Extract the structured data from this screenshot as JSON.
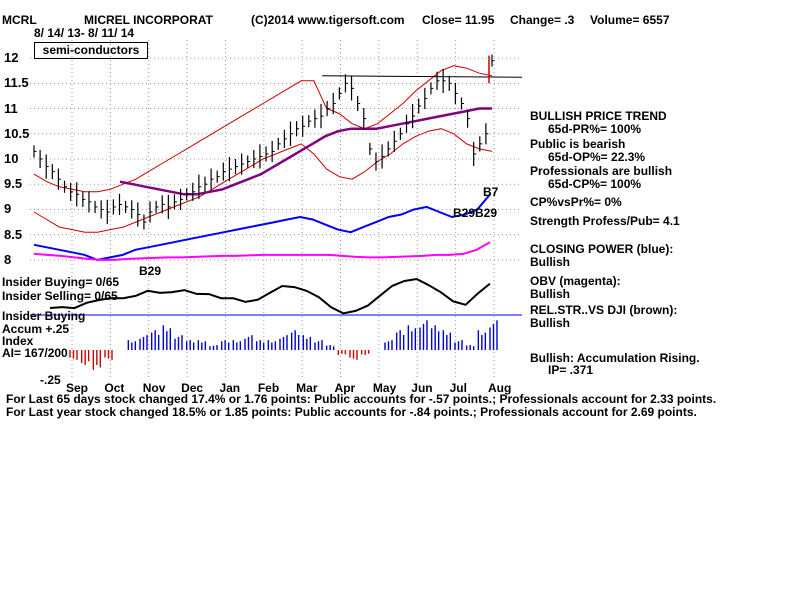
{
  "header": {
    "symbol": "MCRL",
    "company": "MICREL INCORPORAT",
    "copyright": "(C)2014 www.tigersoft.com",
    "close": "Close=  11.95",
    "change": "Change= .3",
    "volume": "Volume= 6557",
    "date_range": "8/ 14/ 13-  8/ 11/ 14",
    "sector": "semi-conductors"
  },
  "side_panel": {
    "items": [
      {
        "text": "BULLISH PRICE TREND",
        "indent": false
      },
      {
        "text": "65d-PR%= 100%",
        "indent": true
      },
      {
        "text": "Public is bearish",
        "indent": false
      },
      {
        "text": "65d-OP%= 22.3%",
        "indent": true
      },
      {
        "text": "Professionals are bullish",
        "indent": false
      },
      {
        "text": "65d-CP%= 100%",
        "indent": true
      },
      {
        "text": "CP%vsPr%=  0%",
        "indent": false
      },
      {
        "text": "Strength Profess/Pub= 4.1",
        "indent": false
      },
      {
        "text": "CLOSING POWER (blue):",
        "indent": false
      },
      {
        "text": "Bullish",
        "indent": false
      },
      {
        "text": "OBV (magenta):",
        "indent": false
      },
      {
        "text": "Bullish",
        "indent": false
      },
      {
        "text": "REL.STR..VS DJI (brown):",
        "indent": false
      },
      {
        "text": "Bullish",
        "indent": false
      },
      {
        "text": "Bullish: Accumulation Rising.",
        "indent": false
      },
      {
        "text": "IP=  .371",
        "indent": true
      }
    ]
  },
  "left_labels": {
    "insider_buying": "Insider Buying= 0/65",
    "insider_selling": "Insider Selling= 0/65",
    "accum_title": "Insider Buying",
    "accum_line1": "Accum  +.25",
    "accum_line2": "Index",
    "ai": "AI= 167/200",
    "accum_low": "-.25"
  },
  "signals": {
    "b29_left": "B29",
    "b29_right": "B29B29",
    "b7": "B7"
  },
  "footer": {
    "line1": "For Last 65 days stock changed  17.4% or  1.76 points:  Public accounts for -.57 points.;  Professionals account for  2.33 points.",
    "line2": "For Last year stock changed  18.5% or  1.85 points:  Public accounts for -.84 points.;  Professionals account for  2.69 points."
  },
  "chart_data": {
    "type": "line",
    "title": "MCRL MICREL INCORPORAT",
    "y_ticks": [
      "12",
      "11.5",
      "11",
      "10.5",
      "10",
      "9.5",
      "9",
      "8.5",
      "8"
    ],
    "ylim": [
      7.8,
      12.2
    ],
    "x_ticks": [
      "Sep",
      "Oct",
      "Nov",
      "Dec",
      "Jan",
      "Feb",
      "Mar",
      "Apr",
      "May",
      "Jun",
      "Jul",
      "Aug"
    ],
    "grid": true,
    "colors": {
      "price": "#000000",
      "bands": "#cc0000",
      "ma": "#800080",
      "closing_power": "#0000ff",
      "obv": "#ff00ff",
      "accum_pos": "#0000cc",
      "accum_neg": "#cc0000",
      "rel_str": "#000000",
      "gridline": "#999999"
    },
    "price_close": [
      10.15,
      10.0,
      9.85,
      9.75,
      9.6,
      9.45,
      9.35,
      9.3,
      9.2,
      9.15,
      9.05,
      9.0,
      8.95,
      9.05,
      9.1,
      9.05,
      9.0,
      8.9,
      8.75,
      8.95,
      9.05,
      9.1,
      9.05,
      9.15,
      9.2,
      9.3,
      9.35,
      9.45,
      9.5,
      9.6,
      9.65,
      9.75,
      9.8,
      9.85,
      9.9,
      9.95,
      10.0,
      10.05,
      10.1,
      10.15,
      10.3,
      10.4,
      10.5,
      10.6,
      10.65,
      10.75,
      10.8,
      10.85,
      11.0,
      11.1,
      11.3,
      11.5,
      11.4,
      11.1,
      10.8,
      10.2,
      9.95,
      10.05,
      10.2,
      10.35,
      10.5,
      10.7,
      10.85,
      11.05,
      11.2,
      11.4,
      11.55,
      11.55,
      11.5,
      11.3,
      11.1,
      10.8,
      10.1,
      10.3,
      10.5,
      11.95
    ],
    "upper_band": [
      9.7,
      9.55,
      9.45,
      9.4,
      9.35,
      9.35,
      9.4,
      9.5,
      9.6,
      9.75,
      9.9,
      10.05,
      10.2,
      10.35,
      10.5,
      10.65,
      10.8,
      10.95,
      11.1,
      11.25,
      11.4,
      11.55,
      11.55,
      11.0,
      10.9,
      10.7,
      10.6,
      10.7,
      10.9,
      11.1,
      11.35,
      11.55,
      11.75,
      11.85,
      11.8,
      11.7,
      11.65
    ],
    "lower_band": [
      8.95,
      8.8,
      8.65,
      8.6,
      8.55,
      8.55,
      8.6,
      8.65,
      8.75,
      8.85,
      8.95,
      9.05,
      9.15,
      9.25,
      9.4,
      9.55,
      9.7,
      9.85,
      10.0,
      10.1,
      10.2,
      10.3,
      10.1,
      9.8,
      9.65,
      9.6,
      9.75,
      9.95,
      10.1,
      10.3,
      10.45,
      10.55,
      10.6,
      10.5,
      10.3,
      10.2,
      10.15
    ],
    "moving_average": [
      9.55,
      9.5,
      9.45,
      9.4,
      9.35,
      9.3,
      9.3,
      9.35,
      9.4,
      9.5,
      9.6,
      9.7,
      9.85,
      10.0,
      10.15,
      10.3,
      10.45,
      10.55,
      10.6,
      10.6,
      10.6,
      10.65,
      10.7,
      10.75,
      10.8,
      10.85,
      10.9,
      10.95,
      11.0,
      11.0
    ],
    "closing_power": [
      8.3,
      8.25,
      8.2,
      8.15,
      8.1,
      8.0,
      8.05,
      8.1,
      8.2,
      8.25,
      8.3,
      8.35,
      8.4,
      8.45,
      8.5,
      8.55,
      8.6,
      8.65,
      8.7,
      8.75,
      8.8,
      8.85,
      8.8,
      8.7,
      8.6,
      8.55,
      8.65,
      8.75,
      8.85,
      8.9,
      9.0,
      9.05,
      8.95,
      8.85,
      8.9,
      9.0,
      9.3
    ],
    "obv": [
      8.12,
      8.1,
      8.08,
      8.05,
      8.02,
      8.0,
      8.0,
      8.02,
      8.03,
      8.04,
      8.05,
      8.05,
      8.06,
      8.07,
      8.08,
      8.08,
      8.09,
      8.1,
      8.1,
      8.1,
      8.1,
      8.1,
      8.1,
      8.08,
      8.06,
      8.05,
      8.05,
      8.06,
      8.07,
      8.08,
      8.1,
      8.1,
      8.12,
      8.2,
      8.35
    ],
    "accumulation": [
      -0.1,
      -0.15,
      -0.2,
      -0.1,
      0.0,
      0.1,
      0.15,
      0.2,
      0.25,
      0.15,
      0.1,
      0.1,
      0.05,
      0.1,
      0.1,
      0.15,
      0.1,
      0.1,
      0.15,
      0.2,
      0.15,
      0.1,
      0.05,
      -0.05,
      -0.1,
      -0.05,
      0.0,
      0.1,
      0.2,
      0.25,
      0.3,
      0.25,
      0.2,
      0.1,
      0.05,
      0.2,
      0.3
    ]
  }
}
